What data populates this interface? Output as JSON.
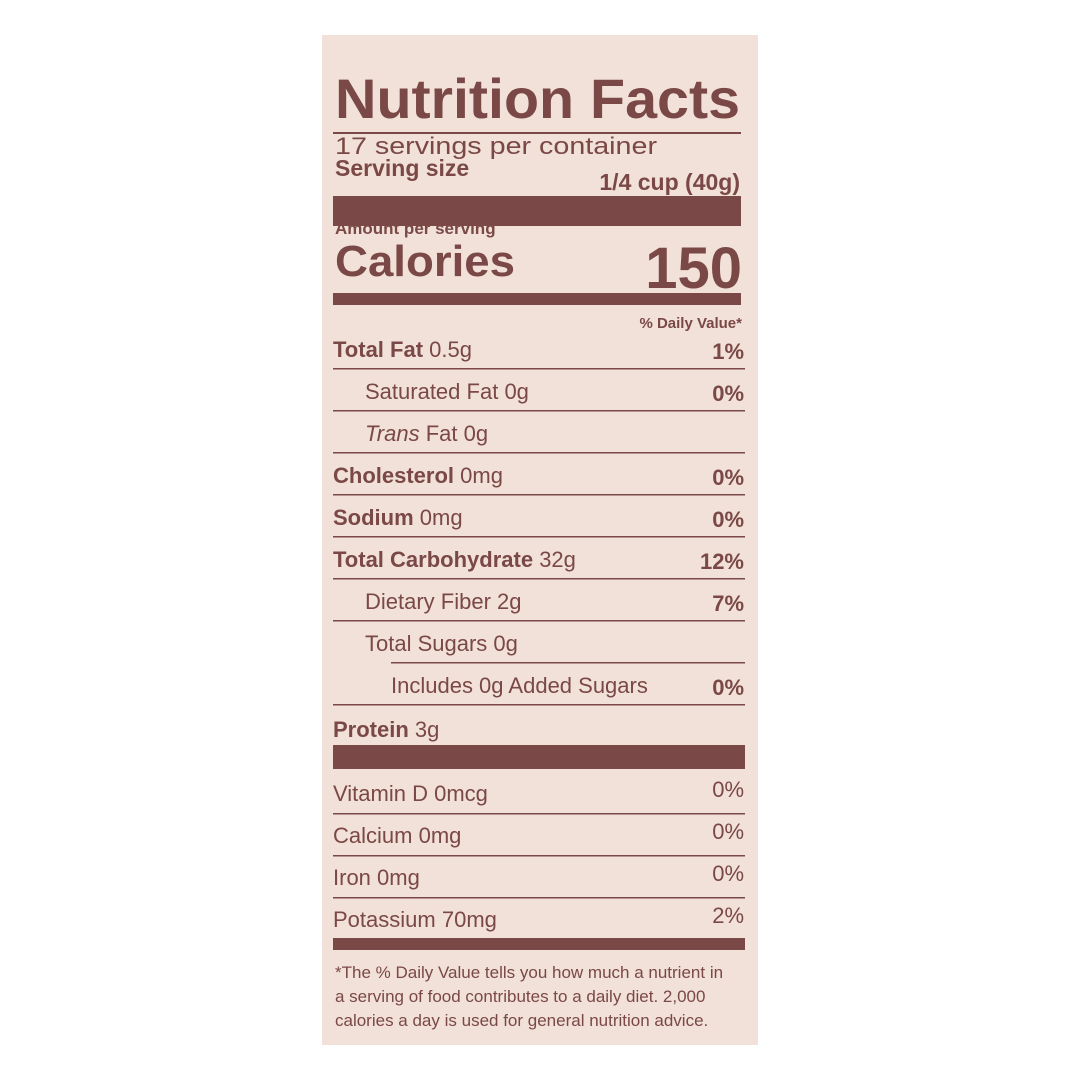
{
  "header": {
    "title": "Nutrition Facts",
    "servings": "17 servings per container",
    "serving_size_label": "Serving size",
    "serving_size": "1/4 cup (40g)"
  },
  "calories": {
    "amount_per_serving": "Amount per serving",
    "label": "Calories",
    "value": "150"
  },
  "daily_value_header": "% Daily Value*",
  "nutrients": [
    {
      "name": "Total Fat",
      "amount": "0.5g",
      "dv": "1%"
    },
    {
      "name": "Saturated Fat",
      "amount": "0g",
      "dv": "0%"
    },
    {
      "name_italic": "Trans",
      "name": "Fat",
      "amount": "0g"
    },
    {
      "name": "Cholesterol",
      "amount": "0mg",
      "dv": "0%"
    },
    {
      "name": "Sodium",
      "amount": "0mg",
      "dv": "0%"
    },
    {
      "name": "Total Carbohydrate",
      "amount": "32g",
      "dv": "12%"
    },
    {
      "name": "Dietary Fiber",
      "amount": "2g",
      "dv": "7%"
    },
    {
      "name": "Total Sugars",
      "amount": "0g"
    },
    {
      "name": "Includes 0g Added Sugars",
      "dv": "0%"
    },
    {
      "name": "Protein",
      "amount": "3g"
    }
  ],
  "vitamins": [
    {
      "name": "Vitamin D",
      "amount": "0mcg",
      "dv": "0%"
    },
    {
      "name": "Calcium",
      "amount": "0mg",
      "dv": "0%"
    },
    {
      "name": "Iron",
      "amount": "0mg",
      "dv": "0%"
    },
    {
      "name": "Potassium",
      "amount": "70mg",
      "dv": "2%"
    }
  ],
  "footnote": [
    "*The % Daily Value tells you how much a nutrient in",
    "a serving of food contributes to a daily diet. 2,000",
    "calories a day is used for general nutrition advice."
  ]
}
